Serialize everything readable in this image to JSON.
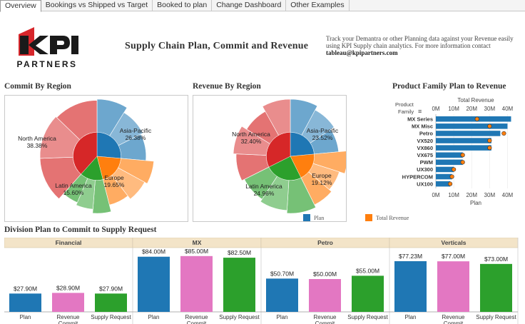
{
  "tabs": [
    {
      "label": "Overview",
      "active": true
    },
    {
      "label": "Bookings vs Shipped vs Target",
      "active": false
    },
    {
      "label": "Booked to plan",
      "active": false
    },
    {
      "label": "Change Dashboard",
      "active": false
    },
    {
      "label": "Other Examples",
      "active": false
    }
  ],
  "logo": {
    "brand": "KPI",
    "sub": "PARTNERS",
    "color_red": "#d7262b",
    "color_black": "#1a1a1a"
  },
  "header": {
    "title": "Supply Chain Plan, Commit and Revenue",
    "intro_text": "Track your Demantra or other Planning data against your Revenue easily using KPI Supply chain analytics. For more information contact",
    "intro_email": "tableau@kpipartners.com"
  },
  "sections": {
    "commit": "Commit By Region",
    "revenue": "Revenue By Region",
    "product": "Product Family Plan to Revenue",
    "division": "Division Plan to Commit to Supply Request"
  },
  "legend": {
    "plan_label": "Plan",
    "plan_color": "#1f77b4",
    "revenue_label": "Total Revenue",
    "revenue_color": "#ff7f0e"
  },
  "colors": {
    "asia": "#1f77b4",
    "europe": "#ff7f0e",
    "latam": "#2ca02c",
    "na": "#d62728",
    "plan": "#1f77b4",
    "commit": "#e377c2",
    "supply": "#2ca02c",
    "rev": "#ff7f0e",
    "division_header_bg": "#f3e4c8"
  },
  "chart_data": [
    {
      "type": "pie",
      "title": "Commit By Region",
      "slices": [
        {
          "label": "Asia-Pacific",
          "value": 26.38,
          "pct_label": "26.38%",
          "color": "#1f77b4"
        },
        {
          "label": "Europe",
          "value": 19.65,
          "pct_label": "19.65%",
          "color": "#ff7f0e"
        },
        {
          "label": "Latin America",
          "value": 15.6,
          "pct_label": "15.60%",
          "color": "#2ca02c"
        },
        {
          "label": "North America",
          "value": 38.38,
          "pct_label": "38.38%",
          "color": "#d62728"
        }
      ]
    },
    {
      "type": "pie",
      "title": "Revenue By Region",
      "slices": [
        {
          "label": "Asia-Pacific",
          "value": 23.52,
          "pct_label": "23.52%",
          "color": "#1f77b4"
        },
        {
          "label": "Europe",
          "value": 19.12,
          "pct_label": "19.12%",
          "color": "#ff7f0e"
        },
        {
          "label": "Latin America",
          "value": 24.96,
          "pct_label": "24.96%",
          "color": "#2ca02c"
        },
        {
          "label": "North America",
          "value": 32.4,
          "pct_label": "32.40%",
          "color": "#d62728"
        }
      ]
    },
    {
      "type": "bar",
      "title": "Product Family Plan to Revenue",
      "orientation": "horizontal",
      "row_header": "Product Family",
      "top_axis_title": "Total Revenue",
      "bottom_axis_title": "Plan",
      "tick_labels": [
        "0M",
        "10M",
        "20M",
        "30M",
        "40M"
      ],
      "xlim": [
        0,
        45
      ],
      "categories": [
        "MX Series",
        "MX Misc",
        "Petro",
        "VX520",
        "VX860",
        "VX675",
        "PWM",
        "UX300",
        "HYPERCOM",
        "UX100"
      ],
      "series": [
        {
          "name": "Plan",
          "values": [
            42,
            40,
            36,
            31,
            31,
            15,
            15,
            10,
            9,
            8
          ]
        },
        {
          "name": "Total Revenue",
          "values": [
            23,
            30,
            38,
            30,
            30,
            15,
            15,
            10,
            9,
            8
          ]
        }
      ]
    },
    {
      "type": "bar",
      "title": "Division Plan to Commit to Supply Request",
      "ylim": [
        0,
        100
      ],
      "panels": [
        {
          "name": "Financial",
          "categories": [
            "Plan",
            "Revenue Commit",
            "Supply Request"
          ],
          "values": [
            27.9,
            28.9,
            27.9
          ],
          "value_labels": [
            "$27.90M",
            "$28.90M",
            "$27.90M"
          ]
        },
        {
          "name": "MX",
          "categories": [
            "Plan",
            "Revenue Commit",
            "Supply Request"
          ],
          "values": [
            84.0,
            85.0,
            82.5
          ],
          "value_labels": [
            "$84.00M",
            "$85.00M",
            "$82.50M"
          ]
        },
        {
          "name": "Petro",
          "categories": [
            "Plan",
            "Revenue Commit",
            "Supply Request"
          ],
          "values": [
            50.7,
            50.0,
            55.0
          ],
          "value_labels": [
            "$50.70M",
            "$50.00M",
            "$55.00M"
          ]
        },
        {
          "name": "Verticals",
          "categories": [
            "Plan",
            "Revenue Commit",
            "Supply Request"
          ],
          "values": [
            77.23,
            77.0,
            73.0
          ],
          "value_labels": [
            "$77.23M",
            "$77.00M",
            "$73.00M"
          ]
        }
      ]
    }
  ]
}
